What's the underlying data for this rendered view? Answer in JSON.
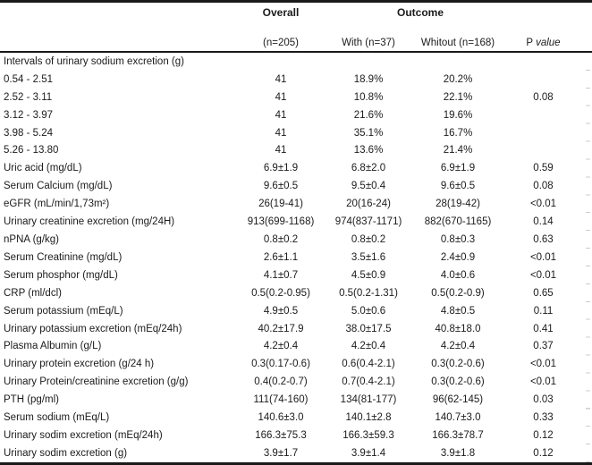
{
  "table": {
    "header": {
      "overall": "Overall",
      "outcome": "Outcome",
      "n_overall": "(n=205)",
      "with": "With (n=37)",
      "without": "Whitout (n=168)",
      "p_prefix": "P",
      "p_italic": "value"
    },
    "rows": [
      {
        "label": "Intervals of urinary sodium excretion (g)",
        "overall": "",
        "with": "",
        "without": "",
        "p": ""
      },
      {
        "label": "0.54 - 2.51",
        "overall": "41",
        "with": "18.9%",
        "without": "20.2%",
        "p": ""
      },
      {
        "label": "2.52 - 3.11",
        "overall": "41",
        "with": "10.8%",
        "without": "22.1%",
        "p": "0.08"
      },
      {
        "label": "3.12 - 3.97",
        "overall": "41",
        "with": "21.6%",
        "without": "19.6%",
        "p": ""
      },
      {
        "label": "3.98 - 5.24",
        "overall": "41",
        "with": "35.1%",
        "without": "16.7%",
        "p": ""
      },
      {
        "label": "5.26 - 13.80",
        "overall": "41",
        "with": "13.6%",
        "without": "21.4%",
        "p": ""
      },
      {
        "label": "Uric acid (mg/dL)",
        "overall": "6.9±1.9",
        "with": "6.8±2.0",
        "without": "6.9±1.9",
        "p": "0.59"
      },
      {
        "label": "Serum Calcium (mg/dL)",
        "overall": "9.6±0.5",
        "with": "9.5±0.4",
        "without": "9.6±0.5",
        "p": "0.08"
      },
      {
        "label": "eGFR (mL/min/1,73m²)",
        "overall": "26(19-41)",
        "with": "20(16-24)",
        "without": "28(19-42)",
        "p": "<0.01"
      },
      {
        "label": "Urinary creatinine excretion (mg/24H)",
        "overall": "913(699-1168)",
        "with": "974(837-1171)",
        "without": "882(670-1165)",
        "p": "0.14"
      },
      {
        "label": "nPNA (g/kg)",
        "overall": "0.8±0.2",
        "with": "0.8±0.2",
        "without": "0.8±0.3",
        "p": "0.63"
      },
      {
        "label": "Serum Creatinine (mg/dL)",
        "overall": "2.6±1.1",
        "with": "3.5±1.6",
        "without": "2.4±0.9",
        "p": "<0.01"
      },
      {
        "label": "Serum phosphor (mg/dL)",
        "overall": "4.1±0.7",
        "with": "4.5±0.9",
        "without": "4.0±0.6",
        "p": "<0.01"
      },
      {
        "label": "CRP (ml/dcl)",
        "overall": "0.5(0.2-0.95)",
        "with": "0.5(0.2-1.31)",
        "without": "0.5(0.2-0.9)",
        "p": "0.65"
      },
      {
        "label": "Serum potassium (mEq/L)",
        "overall": "4.9±0.5",
        "with": "5.0±0.6",
        "without": "4.8±0.5",
        "p": "0.11"
      },
      {
        "label": "Urinary potassium excretion (mEq/24h)",
        "overall": "40.2±17.9",
        "with": "38.0±17.5",
        "without": "40.8±18.0",
        "p": "0.41"
      },
      {
        "label": "Plasma Albumin (g/L)",
        "overall": "4.2±0.4",
        "with": "4.2±0.4",
        "without": "4.2±0.4",
        "p": "0.37"
      },
      {
        "label": "Urinary protein excretion (g/24 h)",
        "overall": "0.3(0.17-0.6)",
        "with": "0.6(0.4-2.1)",
        "without": "0.3(0.2-0.6)",
        "p": "<0.01"
      },
      {
        "label": "Urinary Protein/creatinine excretion (g/g)",
        "overall": "0.4(0.2-0.7)",
        "with": "0.7(0.4-2.1)",
        "without": "0.3(0.2-0.6)",
        "p": "<0.01"
      },
      {
        "label": "PTH (pg/ml)",
        "overall": "111(74-160)",
        "with": "134(81-177)",
        "without": "96(62-145)",
        "p": "0.03"
      },
      {
        "label": "Serum sodium (mEq/L)",
        "overall": "140.6±3.0",
        "with": "140.1±2.8",
        "without": "140.7±3.0",
        "p": "0.33"
      },
      {
        "label": "Urinary sodim excretion (mEq/24h)",
        "overall": "166.3±75.3",
        "with": "166.3±59.3",
        "without": "166.3±78.7",
        "p": "0.12"
      },
      {
        "label": "Urinary sodim excretion (g)",
        "overall": "3.9±1.7",
        "with": "3.9±1.4",
        "without": "3.9±1.8",
        "p": "0.12"
      }
    ],
    "style": {
      "rule_color": "#1a1a1a",
      "text_color": "#1b1b1b",
      "gridline_tick_color": "#cccccc"
    }
  }
}
